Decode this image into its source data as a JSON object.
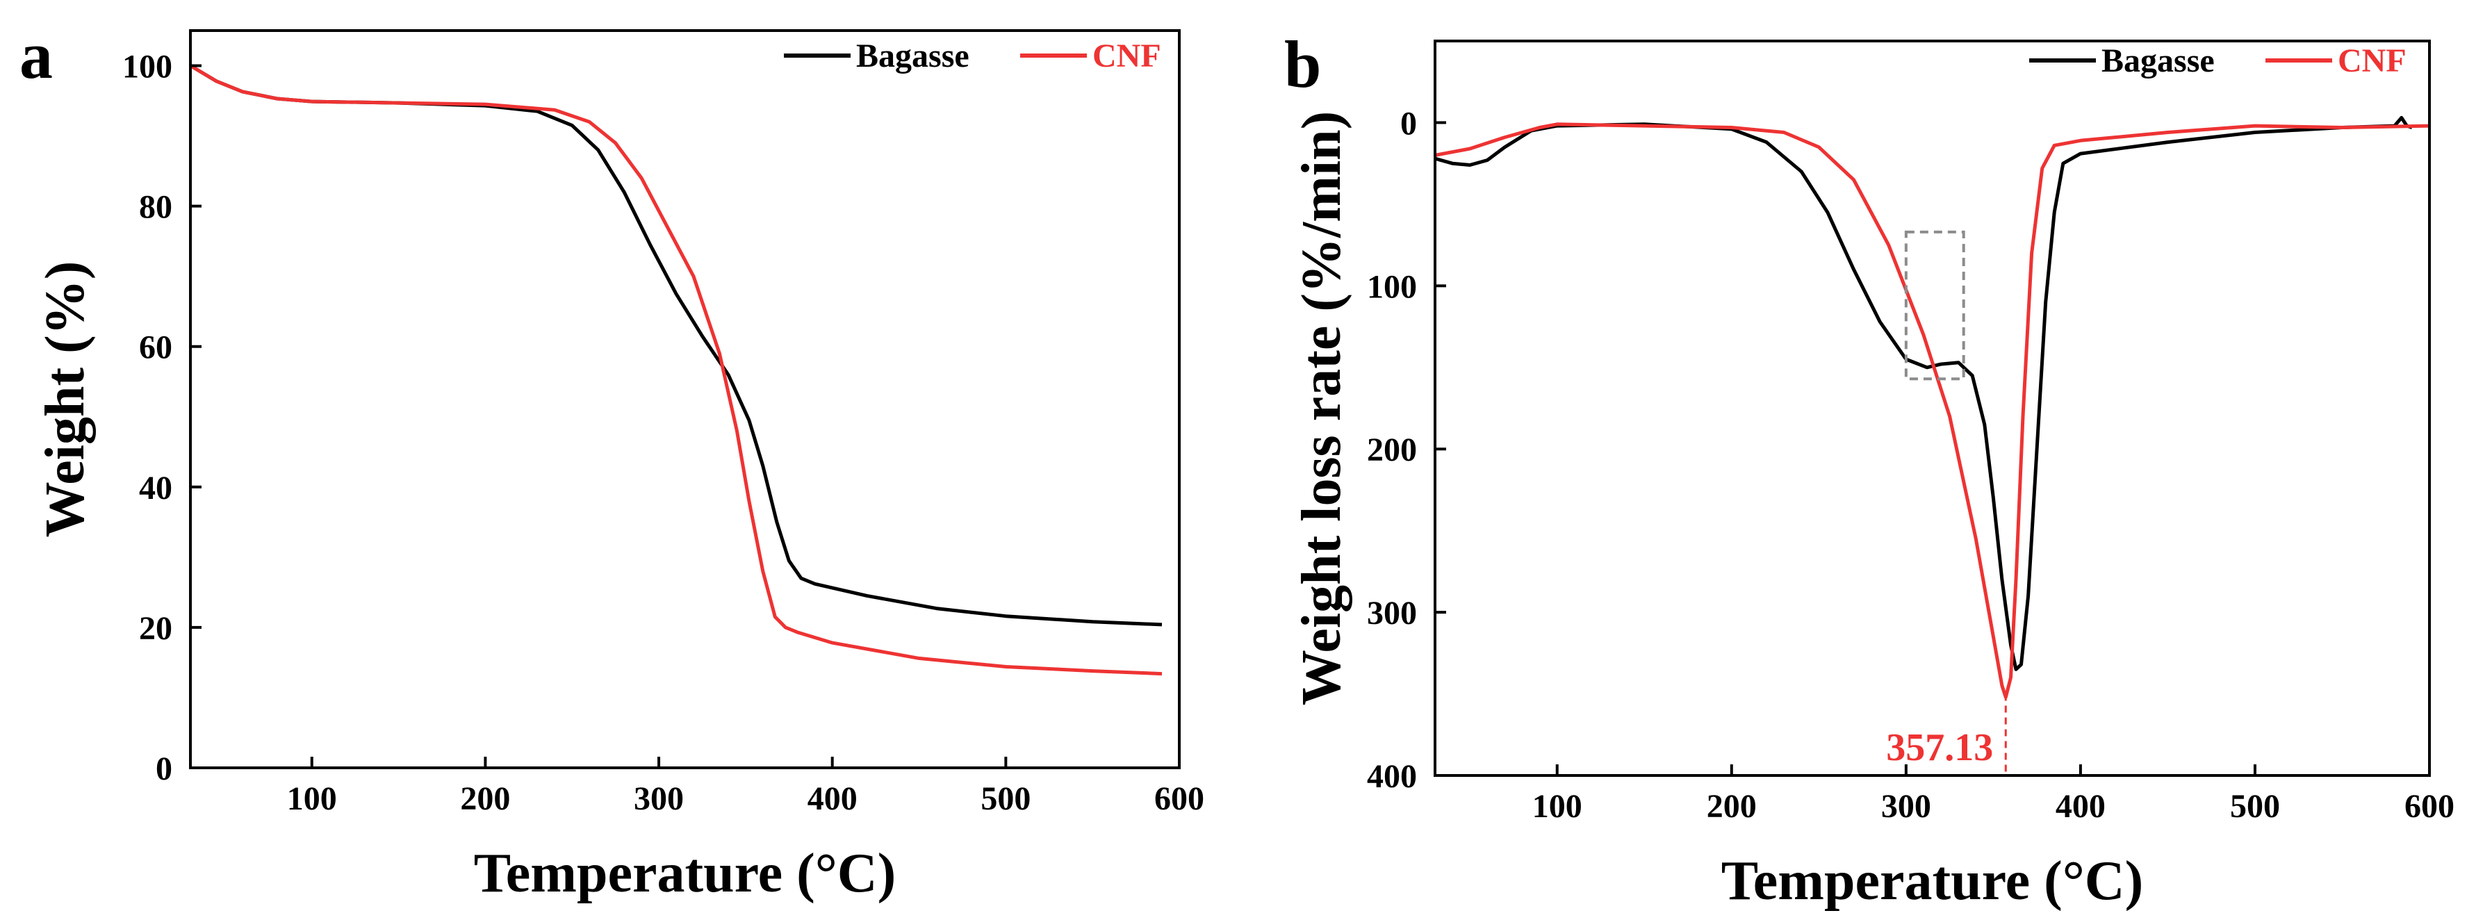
{
  "colors": {
    "bagasse": "#000000",
    "cnf": "#ee3333",
    "dashed_box": "#8c8c8c"
  },
  "chart_data": [
    {
      "panel_label": "a",
      "type": "line",
      "xlabel": "Temperature (°C)",
      "ylabel": "Weight (%)",
      "xlim": [
        30,
        600
      ],
      "ylim": [
        0,
        105
      ],
      "xticks": [
        100,
        200,
        300,
        400,
        500,
        600
      ],
      "yticks": [
        0,
        20,
        40,
        60,
        80,
        100
      ],
      "legend": {
        "position": "top-right",
        "entries": [
          "Bagasse",
          "CNF"
        ]
      },
      "series": [
        {
          "name": "Bagasse",
          "color": "#000000",
          "x": [
            30,
            45,
            60,
            80,
            100,
            150,
            200,
            230,
            250,
            265,
            280,
            295,
            310,
            325,
            340,
            352,
            360,
            368,
            375,
            382,
            390,
            420,
            460,
            500,
            550,
            590
          ],
          "y": [
            100,
            97.8,
            96.3,
            95.3,
            94.9,
            94.7,
            94.3,
            93.5,
            91.5,
            88,
            82,
            74.5,
            67.5,
            61.5,
            56,
            49.5,
            43,
            35,
            29.5,
            27,
            26.2,
            24.5,
            22.7,
            21.6,
            20.8,
            20.4
          ]
        },
        {
          "name": "CNF",
          "color": "#ee3333",
          "x": [
            30,
            45,
            60,
            80,
            100,
            150,
            200,
            240,
            260,
            275,
            290,
            305,
            320,
            335,
            345,
            352,
            360,
            367,
            373,
            380,
            400,
            450,
            500,
            550,
            590
          ],
          "y": [
            100,
            97.8,
            96.3,
            95.3,
            94.9,
            94.7,
            94.5,
            93.7,
            92,
            89,
            84,
            77,
            70,
            59,
            48,
            38,
            28,
            21.5,
            20,
            19.3,
            17.8,
            15.6,
            14.4,
            13.8,
            13.4
          ]
        }
      ]
    },
    {
      "panel_label": "b",
      "type": "line",
      "xlabel": "Temperature (°C)",
      "ylabel": "Weight loss rate (%/min)",
      "xlim": [
        30,
        600
      ],
      "ylim": [
        -50,
        400
      ],
      "y_inverted": true,
      "xticks": [
        100,
        200,
        300,
        400,
        500,
        600
      ],
      "yticks": [
        0,
        100,
        200,
        300,
        400
      ],
      "legend": {
        "position": "top-right",
        "entries": [
          "Bagasse",
          "CNF"
        ]
      },
      "annotations": [
        {
          "text": "357.13",
          "x": 357.13,
          "y": 350,
          "color": "#ee3333"
        }
      ],
      "highlight_box": {
        "x_range": [
          300,
          333
        ],
        "y_range": [
          67,
          157
        ]
      },
      "series": [
        {
          "name": "Bagasse",
          "color": "#000000",
          "x": [
            30,
            40,
            50,
            60,
            70,
            85,
            100,
            150,
            200,
            220,
            240,
            255,
            270,
            285,
            300,
            312,
            320,
            330,
            338,
            345,
            350,
            355,
            360,
            363,
            366,
            370,
            375,
            380,
            385,
            390,
            400,
            450,
            500,
            550,
            580,
            584,
            587,
            590
          ],
          "y": [
            22,
            25,
            26,
            23,
            15,
            5,
            2,
            1,
            4,
            12,
            30,
            55,
            90,
            122,
            145,
            150,
            148,
            147,
            155,
            185,
            230,
            280,
            320,
            335,
            332,
            290,
            200,
            110,
            55,
            25,
            19,
            12,
            6,
            3,
            2,
            -3,
            2,
            3
          ]
        },
        {
          "name": "CNF",
          "color": "#ee3333",
          "x": [
            30,
            50,
            70,
            90,
            100,
            150,
            200,
            230,
            250,
            270,
            290,
            310,
            325,
            340,
            350,
            355,
            357.13,
            360,
            363,
            367,
            372,
            378,
            385,
            400,
            450,
            500,
            550,
            600
          ],
          "y": [
            20,
            16,
            9,
            3,
            1,
            2,
            3,
            6,
            15,
            35,
            75,
            130,
            180,
            255,
            315,
            345,
            352,
            340,
            280,
            180,
            80,
            28,
            14,
            11,
            6,
            2,
            3,
            2
          ]
        }
      ]
    }
  ]
}
